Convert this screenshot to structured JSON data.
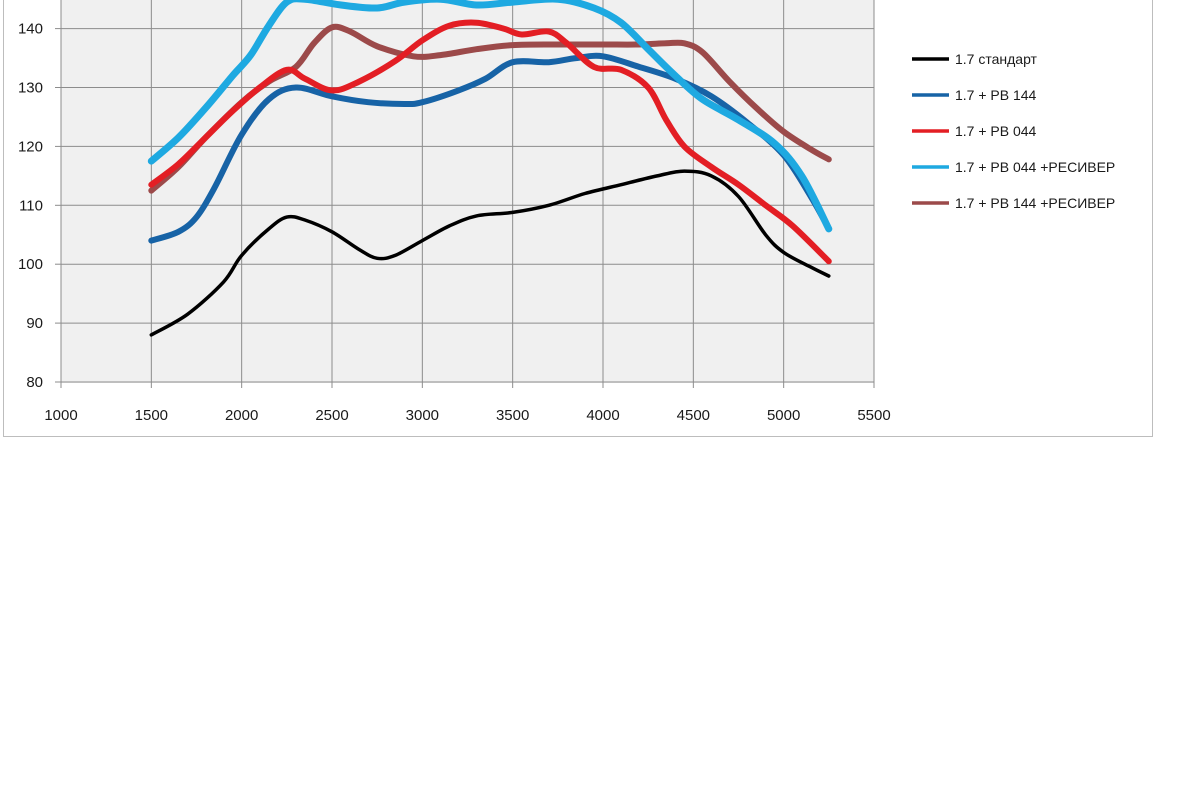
{
  "chart_data": {
    "type": "line",
    "title": "",
    "xlabel": "",
    "ylabel": "",
    "xlim": [
      1000,
      5500
    ],
    "ylim": [
      80,
      145
    ],
    "x_ticks": [
      1000,
      1500,
      2000,
      2500,
      3000,
      3500,
      4000,
      4500,
      5000,
      5500
    ],
    "y_ticks": [
      80,
      90,
      100,
      110,
      120,
      130,
      140
    ],
    "grid": true,
    "legend_position": "right",
    "series": [
      {
        "name": "1.7 стандарт",
        "color": "#000000",
        "points": [
          [
            1500,
            88
          ],
          [
            1700,
            91.5
          ],
          [
            1900,
            97
          ],
          [
            2000,
            101.5
          ],
          [
            2150,
            106
          ],
          [
            2250,
            108
          ],
          [
            2350,
            107.5
          ],
          [
            2500,
            105.5
          ],
          [
            2650,
            102.5
          ],
          [
            2750,
            101
          ],
          [
            2850,
            101.5
          ],
          [
            3000,
            104
          ],
          [
            3150,
            106.5
          ],
          [
            3300,
            108.2
          ],
          [
            3500,
            108.8
          ],
          [
            3700,
            110
          ],
          [
            3900,
            112
          ],
          [
            4100,
            113.5
          ],
          [
            4300,
            115
          ],
          [
            4450,
            115.8
          ],
          [
            4600,
            115
          ],
          [
            4750,
            111.5
          ],
          [
            4900,
            105
          ],
          [
            5000,
            102
          ],
          [
            5150,
            99.5
          ],
          [
            5250,
            98
          ]
        ]
      },
      {
        "name": "1.7 + PB 144",
        "color": "#1763a6",
        "points": [
          [
            1500,
            104
          ],
          [
            1650,
            105.5
          ],
          [
            1750,
            108
          ],
          [
            1850,
            113
          ],
          [
            2000,
            122
          ],
          [
            2150,
            128
          ],
          [
            2300,
            130
          ],
          [
            2500,
            128.5
          ],
          [
            2700,
            127.5
          ],
          [
            2900,
            127.2
          ],
          [
            3000,
            127.5
          ],
          [
            3200,
            129.5
          ],
          [
            3350,
            131.5
          ],
          [
            3500,
            134.3
          ],
          [
            3700,
            134.3
          ],
          [
            3850,
            135
          ],
          [
            4000,
            135.3
          ],
          [
            4200,
            133.5
          ],
          [
            4400,
            131.5
          ],
          [
            4600,
            128.5
          ],
          [
            4800,
            124
          ],
          [
            5000,
            118.5
          ],
          [
            5150,
            111.5
          ],
          [
            5250,
            106
          ]
        ]
      },
      {
        "name": "1.7 + PB 044",
        "color": "#e31e24",
        "points": [
          [
            1500,
            113.5
          ],
          [
            1650,
            117
          ],
          [
            1800,
            121.5
          ],
          [
            1950,
            126
          ],
          [
            2100,
            130
          ],
          [
            2250,
            133
          ],
          [
            2350,
            131.5
          ],
          [
            2500,
            129.5
          ],
          [
            2650,
            131
          ],
          [
            2850,
            134.5
          ],
          [
            3000,
            138
          ],
          [
            3150,
            140.5
          ],
          [
            3300,
            141
          ],
          [
            3450,
            140
          ],
          [
            3550,
            139
          ],
          [
            3700,
            139.5
          ],
          [
            3800,
            137.5
          ],
          [
            3950,
            133.5
          ],
          [
            4100,
            133
          ],
          [
            4250,
            130
          ],
          [
            4350,
            124.5
          ],
          [
            4450,
            120
          ],
          [
            4600,
            116.5
          ],
          [
            4750,
            113.5
          ],
          [
            4900,
            110
          ],
          [
            5050,
            106.5
          ],
          [
            5250,
            100.5
          ]
        ]
      },
      {
        "name": "1.7 + PB 044 +РЕСИВЕР",
        "color": "#1ea9e1",
        "points": [
          [
            1500,
            117.5
          ],
          [
            1650,
            121.5
          ],
          [
            1800,
            126.5
          ],
          [
            1950,
            132
          ],
          [
            2050,
            135.5
          ],
          [
            2150,
            140.5
          ],
          [
            2250,
            144.5
          ],
          [
            2350,
            145
          ],
          [
            2550,
            144
          ],
          [
            2750,
            143.5
          ],
          [
            2900,
            144.5
          ],
          [
            3100,
            145
          ],
          [
            3300,
            144
          ],
          [
            3500,
            144.5
          ],
          [
            3750,
            145
          ],
          [
            3950,
            143.5
          ],
          [
            4100,
            141
          ],
          [
            4250,
            136.5
          ],
          [
            4400,
            132
          ],
          [
            4550,
            128
          ],
          [
            4750,
            124.5
          ],
          [
            4950,
            120.5
          ],
          [
            5100,
            115
          ],
          [
            5250,
            106
          ]
        ]
      },
      {
        "name": "1.7 + PB 144 +РЕСИВЕР",
        "color": "#9c4a4a",
        "points": [
          [
            1500,
            112.5
          ],
          [
            1650,
            116.5
          ],
          [
            1800,
            121.5
          ],
          [
            2000,
            127.5
          ],
          [
            2150,
            131
          ],
          [
            2300,
            133.5
          ],
          [
            2400,
            137.5
          ],
          [
            2500,
            140.2
          ],
          [
            2600,
            139.5
          ],
          [
            2750,
            137
          ],
          [
            2950,
            135.3
          ],
          [
            3100,
            135.5
          ],
          [
            3300,
            136.5
          ],
          [
            3500,
            137.2
          ],
          [
            3750,
            137.3
          ],
          [
            4000,
            137.3
          ],
          [
            4200,
            137.3
          ],
          [
            4350,
            137.5
          ],
          [
            4450,
            137.5
          ],
          [
            4550,
            136
          ],
          [
            4700,
            131
          ],
          [
            4850,
            126.5
          ],
          [
            5000,
            122.5
          ],
          [
            5150,
            119.5
          ],
          [
            5250,
            117.8
          ]
        ]
      }
    ]
  }
}
